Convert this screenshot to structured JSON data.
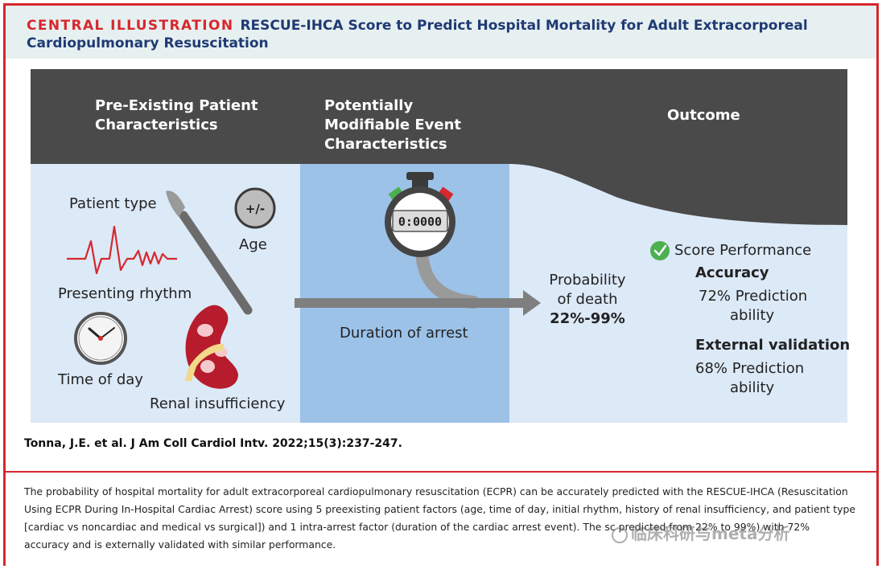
{
  "header": {
    "label": "CENTRAL ILLUSTRATION",
    "title": "RESCUE-IHCA Score to Predict Hospital Mortality for Adult Extracorporeal Cardiopulmonary Resuscitation"
  },
  "columns": {
    "pre_existing": "Pre-Existing Patient Characteristics",
    "modifiable": "Potentially Modifiable Event Characteristics",
    "outcome": "Outcome"
  },
  "factors": {
    "patient_type": "Patient type",
    "age": "Age",
    "age_icon_text": "+/-",
    "presenting_rhythm": "Presenting rhythm",
    "time_of_day": "Time of day",
    "renal": "Renal insufficiency",
    "duration": "Duration of arrest",
    "stopwatch_display": "0:0000"
  },
  "outcome": {
    "probability_line1": "Probability",
    "probability_line2": "of death",
    "range": "22%-99%",
    "score_performance": "Score Performance",
    "accuracy_title": "Accuracy",
    "accuracy_line1": "72% Prediction",
    "accuracy_line2": "ability",
    "validation_title": "External validation",
    "validation_line1": "68% Prediction",
    "validation_line2": "ability"
  },
  "citation": "Tonna, J.E. et al. J Am Coll Cardiol Intv. 2022;15(3):237-247.",
  "caption": "The probability of hospital mortality for adult extracorporeal cardiopulmonary resuscitation (ECPR) can be accurately predicted with the RESCUE-IHCA (Resuscitation Using ECPR During In-Hospital Cardiac Arrest) score using 5 preexisting patient factors (age, time of day, initial rhythm, history of renal insufficiency, and patient type [cardiac vs noncardiac and medical vs surgical]) and 1 intra-arrest factor (duration of the cardiac arrest event). The sc predicted from 22% to 99%) with 72% accuracy and is externally validated with similar performance.",
  "watermark": "临床科研与meta分析",
  "colors": {
    "accent_red": "#d6282d",
    "title_navy": "#1f3a73",
    "dark_band": "#4a4a4a",
    "light_blue": "#dce9f7",
    "mid_blue": "#9cc2e8",
    "check_green": "#4caf50"
  }
}
